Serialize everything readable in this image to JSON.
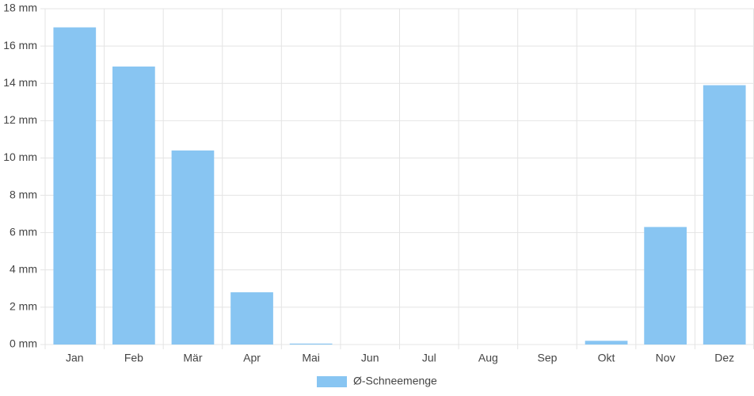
{
  "chart_data": {
    "type": "bar",
    "categories": [
      "Jan",
      "Feb",
      "Mär",
      "Apr",
      "Mai",
      "Jun",
      "Jul",
      "Aug",
      "Sep",
      "Okt",
      "Nov",
      "Dez"
    ],
    "series": [
      {
        "name": "Ø-Schneemenge",
        "color": "#88c5f2",
        "values": [
          17.0,
          14.9,
          10.4,
          2.8,
          0.05,
          0,
          0,
          0,
          0,
          0.2,
          6.3,
          13.9
        ]
      }
    ],
    "ylim": [
      0,
      18
    ],
    "yticks": [
      {
        "value": 0,
        "label": "0 mm"
      },
      {
        "value": 2,
        "label": "2 mm"
      },
      {
        "value": 4,
        "label": "4 mm"
      },
      {
        "value": 6,
        "label": "6 mm"
      },
      {
        "value": 8,
        "label": "8 mm"
      },
      {
        "value": 10,
        "label": "10 mm"
      },
      {
        "value": 12,
        "label": "12 mm"
      },
      {
        "value": 14,
        "label": "14 mm"
      },
      {
        "value": 16,
        "label": "16 mm"
      },
      {
        "value": 18,
        "label": "18 mm"
      }
    ],
    "grid": true,
    "legend": "bottom"
  }
}
